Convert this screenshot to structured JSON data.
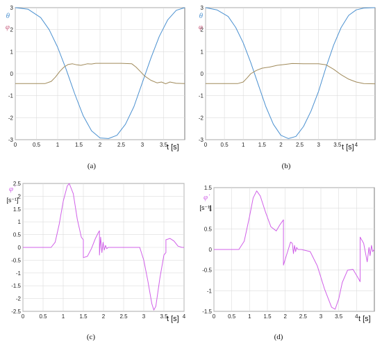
{
  "chart_data": [
    {
      "panel": "(a)",
      "type": "line",
      "xlabel": "t [s]",
      "xlim": [
        0,
        4.0
      ],
      "ylim": [
        -3,
        3
      ],
      "grid": true,
      "xticks": [
        "0",
        "0.5",
        "1",
        "1.5",
        "2",
        "2.5",
        "3",
        "3.5"
      ],
      "yticks": [
        "3",
        "2",
        "1",
        "0",
        "-1",
        "-2",
        "-3"
      ],
      "series": [
        {
          "name": "θ",
          "color": "#4a90d0",
          "x": [
            0,
            0.3,
            0.6,
            0.8,
            1.0,
            1.2,
            1.4,
            1.6,
            1.8,
            2.0,
            2.2,
            2.4,
            2.6,
            2.8,
            3.0,
            3.2,
            3.4,
            3.6,
            3.8,
            4.0
          ],
          "y": [
            3.0,
            2.93,
            2.55,
            2.0,
            1.2,
            0.2,
            -0.9,
            -1.9,
            -2.6,
            -2.92,
            -2.95,
            -2.8,
            -2.3,
            -1.5,
            -0.4,
            0.7,
            1.7,
            2.45,
            2.88,
            3.0
          ]
        },
        {
          "name": "φ",
          "color": "#a08a5a",
          "x": [
            0,
            0.7,
            0.85,
            0.95,
            1.05,
            1.15,
            1.25,
            1.35,
            1.45,
            1.55,
            1.7,
            1.8,
            1.9,
            2.5,
            2.75,
            2.85,
            2.95,
            3.05,
            3.2,
            3.35,
            3.45,
            3.55,
            3.65,
            3.8,
            4.0
          ],
          "y": [
            -0.45,
            -0.45,
            -0.35,
            -0.15,
            0.1,
            0.3,
            0.42,
            0.45,
            0.4,
            0.38,
            0.45,
            0.44,
            0.47,
            0.47,
            0.45,
            0.3,
            0.1,
            -0.1,
            -0.3,
            -0.42,
            -0.38,
            -0.46,
            -0.38,
            -0.44,
            -0.45
          ]
        }
      ]
    },
    {
      "panel": "(b)",
      "type": "line",
      "xlabel": "t [s]",
      "xlim": [
        0,
        4.5
      ],
      "ylim": [
        -3,
        3
      ],
      "grid": true,
      "xticks": [
        "0",
        "0.5",
        "1",
        "1.5",
        "2",
        "2.5",
        "3",
        "3.5",
        "4"
      ],
      "yticks": [
        "3",
        "2",
        "1",
        "0",
        "-1",
        "-2",
        "-3"
      ],
      "series": [
        {
          "name": "θ",
          "color": "#4a90d0",
          "x": [
            0,
            0.3,
            0.6,
            0.8,
            1.0,
            1.2,
            1.4,
            1.6,
            1.8,
            2.0,
            2.2,
            2.4,
            2.6,
            2.8,
            3.0,
            3.2,
            3.4,
            3.6,
            3.8,
            4.0,
            4.2,
            4.5
          ],
          "y": [
            3.0,
            2.9,
            2.6,
            2.1,
            1.4,
            0.5,
            -0.5,
            -1.5,
            -2.3,
            -2.8,
            -2.95,
            -2.85,
            -2.4,
            -1.7,
            -0.8,
            0.3,
            1.3,
            2.1,
            2.65,
            2.9,
            2.98,
            3.0
          ]
        },
        {
          "name": "φ",
          "color": "#a08a5a",
          "x": [
            0,
            0.85,
            1.0,
            1.1,
            1.2,
            1.35,
            1.5,
            1.7,
            1.9,
            2.1,
            2.3,
            2.6,
            3.0,
            3.2,
            3.4,
            3.6,
            3.8,
            4.0,
            4.2,
            4.5
          ],
          "y": [
            -0.45,
            -0.45,
            -0.38,
            -0.2,
            0.0,
            0.15,
            0.25,
            0.3,
            0.38,
            0.42,
            0.46,
            0.45,
            0.45,
            0.4,
            0.2,
            -0.05,
            -0.25,
            -0.38,
            -0.45,
            -0.46
          ]
        }
      ]
    },
    {
      "panel": "(c)",
      "type": "line",
      "xlabel": "t [s]",
      "ylabel": "[s⁻¹]",
      "xlim": [
        0,
        4.0
      ],
      "ylim": [
        -2.5,
        2.5
      ],
      "grid": true,
      "xticks": [
        "0",
        "0.5",
        "1",
        "1.5",
        "2",
        "2.5",
        "3",
        "3.5",
        "4"
      ],
      "yticks": [
        "2.5",
        "2",
        "1.5",
        "1",
        "0.5",
        "0",
        "-0.5",
        "-1",
        "-1.5",
        "-2",
        "-2.5"
      ],
      "series": [
        {
          "name": "φ̇",
          "color": "#d060e8",
          "x": [
            0,
            0.7,
            0.8,
            0.9,
            1.0,
            1.1,
            1.15,
            1.25,
            1.35,
            1.45,
            1.5,
            1.5,
            1.6,
            1.7,
            1.8,
            1.88,
            1.9,
            1.9,
            1.93,
            1.96,
            1.99,
            2.02,
            2.05,
            2.08,
            2.12,
            2.2,
            2.5,
            2.9,
            3.0,
            3.1,
            3.2,
            3.25,
            3.3,
            3.4,
            3.5,
            3.55,
            3.55,
            3.65,
            3.75,
            3.85,
            3.95,
            4.0
          ],
          "y": [
            0,
            0,
            0.2,
            0.9,
            1.8,
            2.4,
            2.5,
            2.1,
            1.1,
            0.4,
            0.3,
            -0.4,
            -0.35,
            -0.05,
            0.35,
            0.6,
            0.65,
            -0.3,
            0.4,
            -0.2,
            0.2,
            -0.1,
            0.08,
            -0.05,
            0.0,
            0,
            0,
            0,
            -0.5,
            -1.3,
            -2.2,
            -2.45,
            -2.3,
            -1.2,
            -0.3,
            -0.2,
            0.3,
            0.35,
            0.25,
            0.05,
            0.0,
            0.0
          ]
        }
      ]
    },
    {
      "panel": "(d)",
      "type": "line",
      "xlabel": "t [s]",
      "ylabel": "[s⁻¹]",
      "xlim": [
        0,
        4.5
      ],
      "ylim": [
        -1.5,
        1.5
      ],
      "grid": true,
      "xticks": [
        "0",
        "0.5",
        "1",
        "1.5",
        "2",
        "2.5",
        "3",
        "3.5",
        "4"
      ],
      "yticks": [
        "1.5",
        "1",
        "0.5",
        "0",
        "-0.5",
        "-1",
        "-1.5"
      ],
      "series": [
        {
          "name": "φ̇",
          "color": "#d060e8",
          "x": [
            0,
            0.7,
            0.85,
            1.0,
            1.1,
            1.2,
            1.3,
            1.45,
            1.6,
            1.75,
            1.85,
            1.95,
            1.95,
            2.05,
            2.15,
            2.2,
            2.23,
            2.26,
            2.29,
            2.32,
            2.36,
            2.45,
            2.7,
            2.9,
            3.1,
            3.3,
            3.4,
            3.5,
            3.6,
            3.75,
            3.9,
            4.05,
            4.1,
            4.1,
            4.2,
            4.3,
            4.35,
            4.38,
            4.42,
            4.45,
            4.5
          ],
          "y": [
            0,
            0,
            0.2,
            0.8,
            1.25,
            1.42,
            1.3,
            0.9,
            0.55,
            0.45,
            0.6,
            0.72,
            -0.38,
            -0.1,
            0.18,
            0.15,
            -0.1,
            0.1,
            -0.05,
            0.05,
            0.0,
            0.0,
            -0.05,
            -0.4,
            -0.95,
            -1.4,
            -1.45,
            -1.2,
            -0.8,
            -0.5,
            -0.48,
            -0.7,
            -0.78,
            0.3,
            0.15,
            -0.3,
            0.05,
            -0.15,
            0.1,
            -0.05,
            0.0
          ]
        }
      ]
    }
  ]
}
